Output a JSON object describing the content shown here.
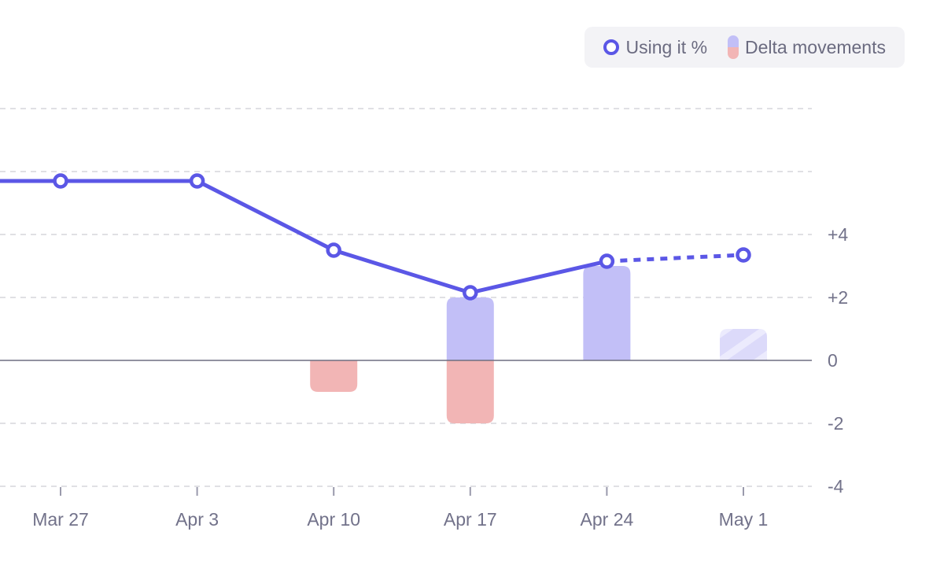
{
  "legend": {
    "line_label": "Using it %",
    "bar_label": "Delta movements"
  },
  "chart_data": {
    "type": "line",
    "categories": [
      "Mar 27",
      "Apr 3",
      "Apr 10",
      "Apr 17",
      "Apr 24",
      "May 1"
    ],
    "series": [
      {
        "name": "Using it %",
        "type": "line",
        "values": [
          5.7,
          5.7,
          3.5,
          2.15,
          3.15,
          3.35
        ],
        "projected_from_index": 4
      },
      {
        "name": "Delta movements",
        "type": "bar",
        "positive": [
          0,
          0,
          0,
          2,
          3,
          1
        ],
        "negative": [
          0,
          0,
          -1,
          -2,
          0,
          0
        ],
        "projected_index": 5
      }
    ],
    "y_ticks": [
      "-4",
      "-2",
      "0",
      "+2",
      "+4"
    ],
    "y_tick_values": [
      -4,
      -2,
      0,
      2,
      4
    ],
    "ylim": [
      -4,
      8
    ],
    "grid": true,
    "legend_position": "top-right",
    "colors": {
      "line": "#5b57e6",
      "positive": "#c2bff7",
      "negative": "#f2b5b5",
      "projected": "#dcdafa",
      "grid": "#d6d6dc",
      "zero_line": "#6e6e80"
    }
  }
}
